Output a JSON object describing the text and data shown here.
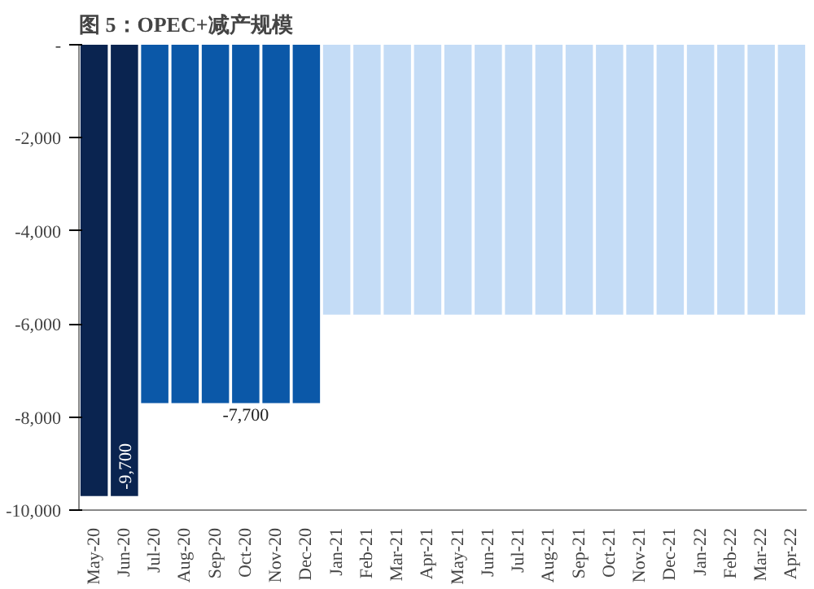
{
  "chart_data": {
    "type": "bar",
    "title": "图 5：OPEC+减产规模",
    "categories": [
      "May-20",
      "Jun-20",
      "Jul-20",
      "Aug-20",
      "Sep-20",
      "Oct-20",
      "Nov-20",
      "Dec-20",
      "Jan-21",
      "Feb-21",
      "Mar-21",
      "Apr-21",
      "May-21",
      "Jun-21",
      "Jul-21",
      "Aug-21",
      "Sep-21",
      "Oct-21",
      "Nov-21",
      "Dec-21",
      "Jan-22",
      "Feb-22",
      "Mar-22",
      "Apr-22"
    ],
    "values": [
      -9700,
      -9700,
      -7700,
      -7700,
      -7700,
      -7700,
      -7700,
      -7700,
      -5800,
      -5800,
      -5800,
      -5800,
      -5800,
      -5800,
      -5800,
      -5800,
      -5800,
      -5800,
      -5800,
      -5800,
      -5800,
      -5800,
      -5800,
      -5800
    ],
    "colors": [
      "#0a2450",
      "#0a2450",
      "#0b58a8",
      "#0b58a8",
      "#0b58a8",
      "#0b58a8",
      "#0b58a8",
      "#0b58a8",
      "#c4dcf6",
      "#c4dcf6",
      "#c4dcf6",
      "#c4dcf6",
      "#c4dcf6",
      "#c4dcf6",
      "#c4dcf6",
      "#c4dcf6",
      "#c4dcf6",
      "#c4dcf6",
      "#c4dcf6",
      "#c4dcf6",
      "#c4dcf6",
      "#c4dcf6",
      "#c4dcf6",
      "#c4dcf6"
    ],
    "value_labels": [
      null,
      "-9,700",
      null,
      null,
      null,
      "-7,700",
      null,
      null,
      null,
      null,
      null,
      null,
      null,
      null,
      null,
      null,
      null,
      null,
      null,
      null,
      null,
      null,
      null,
      null
    ],
    "ylim": [
      -10000,
      0
    ],
    "yticks": [
      {
        "value": 0,
        "label": "-"
      },
      {
        "value": -2000,
        "label": "-2,000"
      },
      {
        "value": -4000,
        "label": "-4,000"
      },
      {
        "value": -6000,
        "label": "-6,000"
      },
      {
        "value": -8000,
        "label": "-8,000"
      },
      {
        "value": -10000,
        "label": "-10,000"
      }
    ],
    "grid": false
  }
}
